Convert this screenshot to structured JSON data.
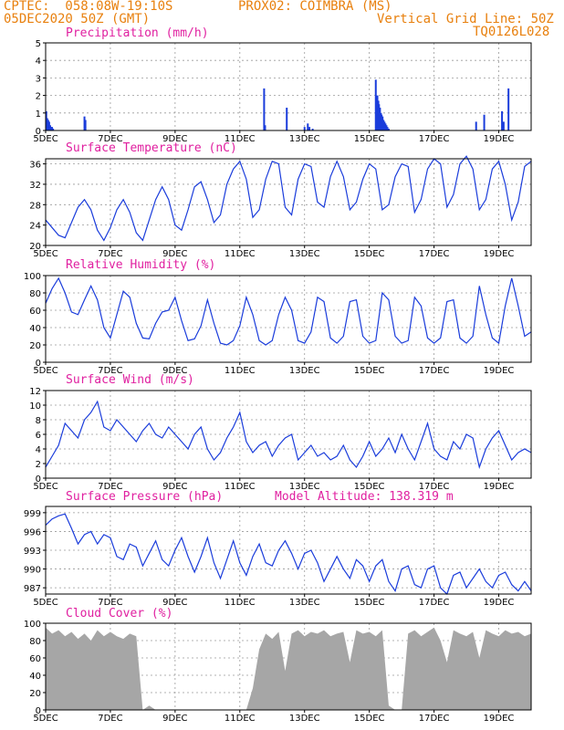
{
  "header": {
    "line1_left": "CPTEC:  058:08W-19:10S",
    "line1_right": "PROX02: COIMBRA (MS)",
    "line2_left": "05DEC2020 50Z (GMT)",
    "line2_right": "Vertical Grid Line: 50Z",
    "line3_right": "TQ0126L028"
  },
  "colors": {
    "header": "#e8800e",
    "title": "#e020a0",
    "line": "#1a3cdb",
    "fill": "#a6a6a6",
    "grid": "#9a9a9a"
  },
  "x_ticks": [
    "5DEC",
    "7DEC",
    "9DEC",
    "11DEC",
    "13DEC",
    "15DEC",
    "17DEC",
    "19DEC"
  ],
  "chart_data": [
    {
      "type": "bar",
      "title": "Precipitation (mm/h)",
      "ylim": [
        0,
        5
      ],
      "yticks": [
        0,
        1,
        2,
        3,
        4,
        5
      ],
      "x": [
        0.02,
        0.05,
        0.08,
        0.11,
        0.14,
        0.17,
        0.2,
        0.23,
        1.2,
        1.23,
        6.75,
        6.78,
        7.45,
        8.0,
        8.1,
        8.15,
        8.25,
        10.2,
        10.25,
        10.28,
        10.3,
        10.33,
        10.36,
        10.38,
        10.41,
        10.44,
        10.47,
        10.5,
        10.53,
        10.56,
        10.6,
        13.3,
        13.55,
        14.1,
        14.15,
        14.3
      ],
      "values": [
        1.1,
        0.7,
        0.6,
        0.5,
        0.3,
        0.2,
        0.2,
        0.1,
        0.8,
        0.6,
        2.4,
        0.3,
        1.3,
        0.2,
        0.4,
        0.2,
        0.1,
        2.9,
        2.0,
        1.7,
        1.5,
        1.3,
        1.0,
        0.9,
        0.8,
        0.6,
        0.5,
        0.4,
        0.3,
        0.2,
        0.1,
        0.5,
        0.9,
        1.1,
        0.5,
        2.4
      ],
      "color": "#1a3cdb"
    },
    {
      "type": "line",
      "title": "Surface Temperature (nC)",
      "ylim": [
        20,
        37
      ],
      "yticks": [
        20,
        24,
        28,
        32,
        36
      ],
      "x": [
        0.0,
        0.2,
        0.4,
        0.6,
        0.8,
        1.0,
        1.2,
        1.4,
        1.6,
        1.8,
        2.0,
        2.2,
        2.4,
        2.6,
        2.8,
        3.0,
        3.2,
        3.4,
        3.6,
        3.8,
        4.0,
        4.2,
        4.4,
        4.6,
        4.8,
        5.0,
        5.2,
        5.4,
        5.6,
        5.8,
        6.0,
        6.2,
        6.4,
        6.6,
        6.8,
        7.0,
        7.2,
        7.4,
        7.6,
        7.8,
        8.0,
        8.2,
        8.4,
        8.6,
        8.8,
        9.0,
        9.2,
        9.4,
        9.6,
        9.8,
        10.0,
        10.2,
        10.4,
        10.6,
        10.8,
        11.0,
        11.2,
        11.4,
        11.6,
        11.8,
        12.0,
        12.2,
        12.4,
        12.6,
        12.8,
        13.0,
        13.2,
        13.4,
        13.6,
        13.8,
        14.0,
        14.2,
        14.4,
        14.6,
        14.8,
        15.0
      ],
      "values": [
        25.0,
        23.5,
        22.0,
        21.5,
        24.5,
        27.5,
        29.0,
        27.0,
        23.0,
        21.0,
        23.5,
        27.0,
        29.0,
        26.5,
        22.5,
        21.0,
        25.0,
        29.0,
        31.5,
        29.0,
        24.0,
        23.0,
        27.0,
        31.5,
        32.5,
        29.0,
        24.5,
        26.0,
        32.0,
        35.0,
        36.5,
        33.0,
        25.5,
        27.0,
        33.0,
        36.5,
        36.0,
        27.5,
        26.0,
        33.0,
        36.0,
        35.5,
        28.5,
        27.5,
        33.5,
        36.5,
        33.5,
        27.0,
        28.5,
        33.0,
        36.0,
        35.0,
        27.0,
        28.0,
        33.5,
        36.0,
        35.5,
        26.5,
        29.0,
        35.0,
        37.0,
        36.0,
        27.5,
        30.0,
        36.0,
        37.5,
        35.0,
        27.0,
        29.0,
        35.0,
        36.5,
        32.0,
        25.0,
        28.5,
        35.5,
        36.5
      ],
      "color": "#1a3cdb"
    },
    {
      "type": "line",
      "title": "Relative Humidity (%)",
      "ylim": [
        0,
        100
      ],
      "yticks": [
        0,
        20,
        40,
        60,
        80,
        100
      ],
      "x": [
        0.0,
        0.2,
        0.4,
        0.6,
        0.8,
        1.0,
        1.2,
        1.4,
        1.6,
        1.8,
        2.0,
        2.2,
        2.4,
        2.6,
        2.8,
        3.0,
        3.2,
        3.4,
        3.6,
        3.8,
        4.0,
        4.2,
        4.4,
        4.6,
        4.8,
        5.0,
        5.2,
        5.4,
        5.6,
        5.8,
        6.0,
        6.2,
        6.4,
        6.6,
        6.8,
        7.0,
        7.2,
        7.4,
        7.6,
        7.8,
        8.0,
        8.2,
        8.4,
        8.6,
        8.8,
        9.0,
        9.2,
        9.4,
        9.6,
        9.8,
        10.0,
        10.2,
        10.4,
        10.6,
        10.8,
        11.0,
        11.2,
        11.4,
        11.6,
        11.8,
        12.0,
        12.2,
        12.4,
        12.6,
        12.8,
        13.0,
        13.2,
        13.4,
        13.6,
        13.8,
        14.0,
        14.2,
        14.4,
        14.6,
        14.8,
        15.0
      ],
      "values": [
        68,
        85,
        97,
        80,
        58,
        55,
        72,
        88,
        72,
        40,
        28,
        55,
        82,
        75,
        45,
        28,
        27,
        45,
        58,
        60,
        75,
        48,
        25,
        27,
        42,
        72,
        45,
        22,
        20,
        25,
        42,
        75,
        55,
        25,
        20,
        25,
        55,
        75,
        60,
        25,
        22,
        35,
        75,
        70,
        28,
        22,
        30,
        70,
        72,
        30,
        22,
        25,
        80,
        72,
        30,
        22,
        25,
        75,
        65,
        28,
        22,
        28,
        70,
        72,
        28,
        22,
        30,
        88,
        55,
        28,
        22,
        65,
        97,
        65,
        30,
        35
      ],
      "color": "#1a3cdb"
    },
    {
      "type": "line",
      "title": "Surface Wind (m/s)",
      "ylim": [
        0,
        12
      ],
      "yticks": [
        0,
        2,
        4,
        6,
        8,
        10,
        12
      ],
      "x": [
        0.0,
        0.2,
        0.4,
        0.6,
        0.8,
        1.0,
        1.2,
        1.4,
        1.6,
        1.8,
        2.0,
        2.2,
        2.4,
        2.6,
        2.8,
        3.0,
        3.2,
        3.4,
        3.6,
        3.8,
        4.0,
        4.2,
        4.4,
        4.6,
        4.8,
        5.0,
        5.2,
        5.4,
        5.6,
        5.8,
        6.0,
        6.2,
        6.4,
        6.6,
        6.8,
        7.0,
        7.2,
        7.4,
        7.6,
        7.8,
        8.0,
        8.2,
        8.4,
        8.6,
        8.8,
        9.0,
        9.2,
        9.4,
        9.6,
        9.8,
        10.0,
        10.2,
        10.4,
        10.6,
        10.8,
        11.0,
        11.2,
        11.4,
        11.6,
        11.8,
        12.0,
        12.2,
        12.4,
        12.6,
        12.8,
        13.0,
        13.2,
        13.4,
        13.6,
        13.8,
        14.0,
        14.2,
        14.4,
        14.6,
        14.8,
        15.0
      ],
      "values": [
        1.5,
        3.0,
        4.5,
        7.5,
        6.5,
        5.5,
        8.0,
        9.0,
        10.5,
        7.0,
        6.5,
        8.0,
        7.0,
        6.0,
        5.0,
        6.5,
        7.5,
        6.0,
        5.5,
        7.0,
        6.0,
        5.0,
        4.0,
        6.0,
        7.0,
        4.0,
        2.5,
        3.5,
        5.5,
        7.0,
        9.0,
        5.0,
        3.5,
        4.5,
        5.0,
        3.0,
        4.5,
        5.5,
        6.0,
        2.5,
        3.5,
        4.5,
        3.0,
        3.5,
        2.5,
        3.0,
        4.5,
        2.5,
        1.5,
        3.0,
        5.0,
        3.0,
        4.0,
        5.5,
        3.5,
        6.0,
        4.0,
        2.5,
        5.0,
        7.5,
        4.0,
        3.0,
        2.5,
        5.0,
        4.0,
        6.0,
        5.5,
        1.5,
        4.0,
        5.5,
        6.5,
        4.5,
        2.5,
        3.5,
        4.0,
        3.5
      ],
      "color": "#1a3cdb"
    },
    {
      "type": "line",
      "title": "Surface Pressure (hPa)",
      "annotation": "Model Altitude: 138.319 m",
      "ylim": [
        986,
        1000
      ],
      "yticks": [
        987,
        990,
        993,
        996,
        999
      ],
      "x": [
        0.0,
        0.2,
        0.4,
        0.6,
        0.8,
        1.0,
        1.2,
        1.4,
        1.6,
        1.8,
        2.0,
        2.2,
        2.4,
        2.6,
        2.8,
        3.0,
        3.2,
        3.4,
        3.6,
        3.8,
        4.0,
        4.2,
        4.4,
        4.6,
        4.8,
        5.0,
        5.2,
        5.4,
        5.6,
        5.8,
        6.0,
        6.2,
        6.4,
        6.6,
        6.8,
        7.0,
        7.2,
        7.4,
        7.6,
        7.8,
        8.0,
        8.2,
        8.4,
        8.6,
        8.8,
        9.0,
        9.2,
        9.4,
        9.6,
        9.8,
        10.0,
        10.2,
        10.4,
        10.6,
        10.8,
        11.0,
        11.2,
        11.4,
        11.6,
        11.8,
        12.0,
        12.2,
        12.4,
        12.6,
        12.8,
        13.0,
        13.2,
        13.4,
        13.6,
        13.8,
        14.0,
        14.2,
        14.4,
        14.6,
        14.8,
        15.0
      ],
      "values": [
        997.0,
        998.0,
        998.5,
        998.8,
        996.5,
        994.0,
        995.5,
        996.0,
        994.0,
        995.5,
        995.0,
        992.0,
        991.5,
        994.0,
        993.5,
        990.5,
        992.5,
        994.5,
        991.5,
        990.5,
        993.0,
        995.0,
        992.0,
        989.5,
        992.0,
        995.0,
        991.0,
        988.5,
        991.5,
        994.5,
        991.0,
        989.0,
        992.0,
        994.0,
        991.0,
        990.5,
        993.0,
        994.5,
        992.5,
        990.0,
        992.5,
        993.0,
        991.0,
        988.0,
        990.0,
        992.0,
        990.0,
        988.5,
        991.5,
        990.5,
        988.0,
        990.5,
        991.5,
        988.0,
        986.5,
        990.0,
        990.5,
        987.5,
        987.0,
        990.0,
        990.5,
        987.0,
        986.0,
        989.0,
        989.5,
        987.0,
        988.5,
        990.0,
        988.0,
        987.0,
        989.0,
        989.5,
        987.5,
        986.5,
        988.0,
        986.5
      ],
      "color": "#1a3cdb"
    },
    {
      "type": "area",
      "title": "Cloud Cover (%)",
      "ylim": [
        0,
        100
      ],
      "yticks": [
        0,
        20,
        40,
        60,
        80,
        100
      ],
      "x": [
        0.0,
        0.2,
        0.4,
        0.6,
        0.8,
        1.0,
        1.2,
        1.4,
        1.6,
        1.8,
        2.0,
        2.2,
        2.4,
        2.6,
        2.8,
        3.0,
        3.2,
        3.4,
        3.6,
        3.8,
        4.0,
        4.2,
        4.4,
        4.6,
        4.8,
        5.0,
        5.2,
        5.4,
        5.6,
        5.8,
        6.0,
        6.2,
        6.4,
        6.6,
        6.8,
        7.0,
        7.2,
        7.4,
        7.6,
        7.8,
        8.0,
        8.2,
        8.4,
        8.6,
        8.8,
        9.0,
        9.2,
        9.4,
        9.6,
        9.8,
        10.0,
        10.2,
        10.4,
        10.6,
        10.8,
        11.0,
        11.2,
        11.4,
        11.6,
        11.8,
        12.0,
        12.2,
        12.4,
        12.6,
        12.8,
        13.0,
        13.2,
        13.4,
        13.6,
        13.8,
        14.0,
        14.2,
        14.4,
        14.6,
        14.8,
        15.0
      ],
      "values": [
        95,
        88,
        92,
        85,
        90,
        82,
        88,
        80,
        92,
        85,
        90,
        85,
        82,
        88,
        85,
        0,
        5,
        0,
        0,
        0,
        0,
        0,
        0,
        0,
        0,
        0,
        0,
        0,
        0,
        0,
        0,
        0,
        25,
        70,
        88,
        82,
        90,
        45,
        88,
        92,
        85,
        90,
        88,
        92,
        85,
        88,
        90,
        55,
        92,
        88,
        90,
        85,
        92,
        5,
        0,
        0,
        88,
        92,
        85,
        90,
        95,
        80,
        55,
        92,
        88,
        85,
        90,
        60,
        92,
        88,
        85,
        92,
        88,
        90,
        85,
        88
      ],
      "color": "#a6a6a6"
    }
  ]
}
